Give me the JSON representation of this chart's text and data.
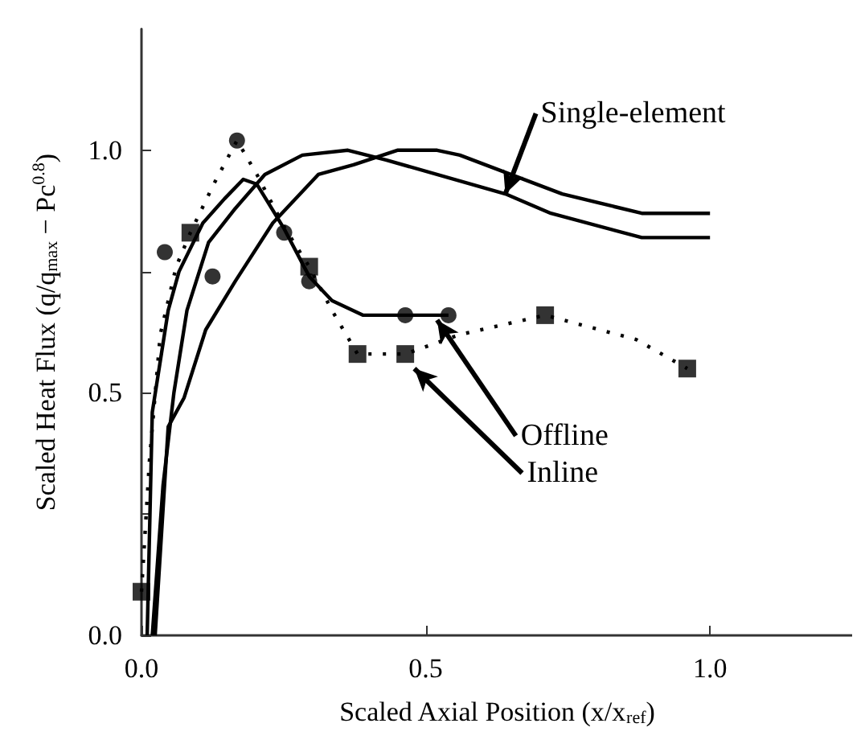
{
  "chart_data": {
    "type": "line",
    "xlabel": "Scaled Axial Position (x/x$_{ref}$)",
    "ylabel": "Scaled Heat Flux (q/q$_{max}$ − Pc$^{0.8}$)",
    "xlim": [
      0,
      1.25
    ],
    "ylim": [
      0,
      1.25
    ],
    "xticks": [
      {
        "value": 0,
        "label": "0.0"
      },
      {
        "value": 0.5,
        "label": "0.5"
      },
      {
        "value": 1.0,
        "label": "1.0"
      }
    ],
    "yticks": [
      {
        "value": 0,
        "label": "0.0"
      },
      {
        "value": 0.25,
        "label": null
      },
      {
        "value": 0.5,
        "label": "0.5"
      },
      {
        "value": 0.75,
        "label": null
      },
      {
        "value": 1.0,
        "label": "1.0"
      }
    ],
    "series": [
      {
        "type": "line",
        "color": "#000000",
        "line_style": "solid",
        "marker": "none",
        "x": [
          0.019,
          0.038,
          0.057,
          0.08,
          0.118,
          0.165,
          0.217,
          0.283,
          0.363,
          0.43,
          0.64,
          0.72,
          0.88,
          1.0
        ],
        "values": [
          0,
          0.31,
          0.5,
          0.67,
          0.81,
          0.88,
          0.95,
          0.99,
          1.0,
          0.98,
          0.91,
          0.87,
          0.82,
          0.82
        ]
      },
      {
        "type": "line",
        "color": "#000000",
        "line_style": "solid",
        "marker": "none",
        "x": [
          0.024,
          0.047,
          0.075,
          0.113,
          0.165,
          0.231,
          0.311,
          0.373,
          0.45,
          0.52,
          0.56,
          0.74,
          0.88,
          1.0
        ],
        "values": [
          0,
          0.43,
          0.49,
          0.63,
          0.73,
          0.85,
          0.95,
          0.97,
          1.0,
          1.0,
          0.99,
          0.91,
          0.87,
          0.87
        ]
      },
      {
        "type": "line",
        "color": "#000000",
        "line_style": "solid",
        "marker": "none",
        "x": [
          0.01,
          0.019,
          0.047,
          0.066,
          0.108,
          0.146,
          0.179,
          0.203,
          0.25,
          0.295,
          0.335,
          0.39,
          0.46,
          0.54
        ],
        "values": [
          0,
          0.46,
          0.67,
          0.75,
          0.85,
          0.9,
          0.94,
          0.93,
          0.84,
          0.74,
          0.69,
          0.66,
          0.66,
          0.66
        ]
      },
      {
        "type": "scatter",
        "color": "#000000",
        "marker": "circle",
        "x": [
          0.041,
          0.125,
          0.168,
          0.251,
          0.295,
          0.464,
          0.54
        ],
        "values": [
          0.79,
          0.74,
          1.02,
          0.83,
          0.73,
          0.66,
          0.66
        ]
      },
      {
        "type": "line",
        "color": "#000000",
        "line_style": "dotted",
        "marker": "none",
        "x": [
          0,
          0.014,
          0.033,
          0.061,
          0.086,
          0.127,
          0.168,
          0.203,
          0.252,
          0.295,
          0.335,
          0.38,
          0.464,
          0.56,
          0.71,
          0.87,
          0.96
        ],
        "values": [
          0.09,
          0.36,
          0.62,
          0.76,
          0.83,
          0.93,
          1.02,
          0.95,
          0.84,
          0.76,
          0.67,
          0.58,
          0.58,
          0.62,
          0.66,
          0.61,
          0.55
        ]
      },
      {
        "type": "scatter",
        "color": "#000000",
        "marker": "square",
        "x": [
          0,
          0.086,
          0.295,
          0.38,
          0.464,
          0.71,
          0.96
        ],
        "values": [
          0.09,
          0.83,
          0.76,
          0.58,
          0.58,
          0.66,
          0.55
        ]
      }
    ],
    "annotations": [
      {
        "text": "Single-element",
        "x": 0.64,
        "y": 0.91
      },
      {
        "text": "Offline",
        "x": 0.52,
        "y": 0.65
      },
      {
        "text": "Inline",
        "x": 0.48,
        "y": 0.55
      }
    ]
  }
}
